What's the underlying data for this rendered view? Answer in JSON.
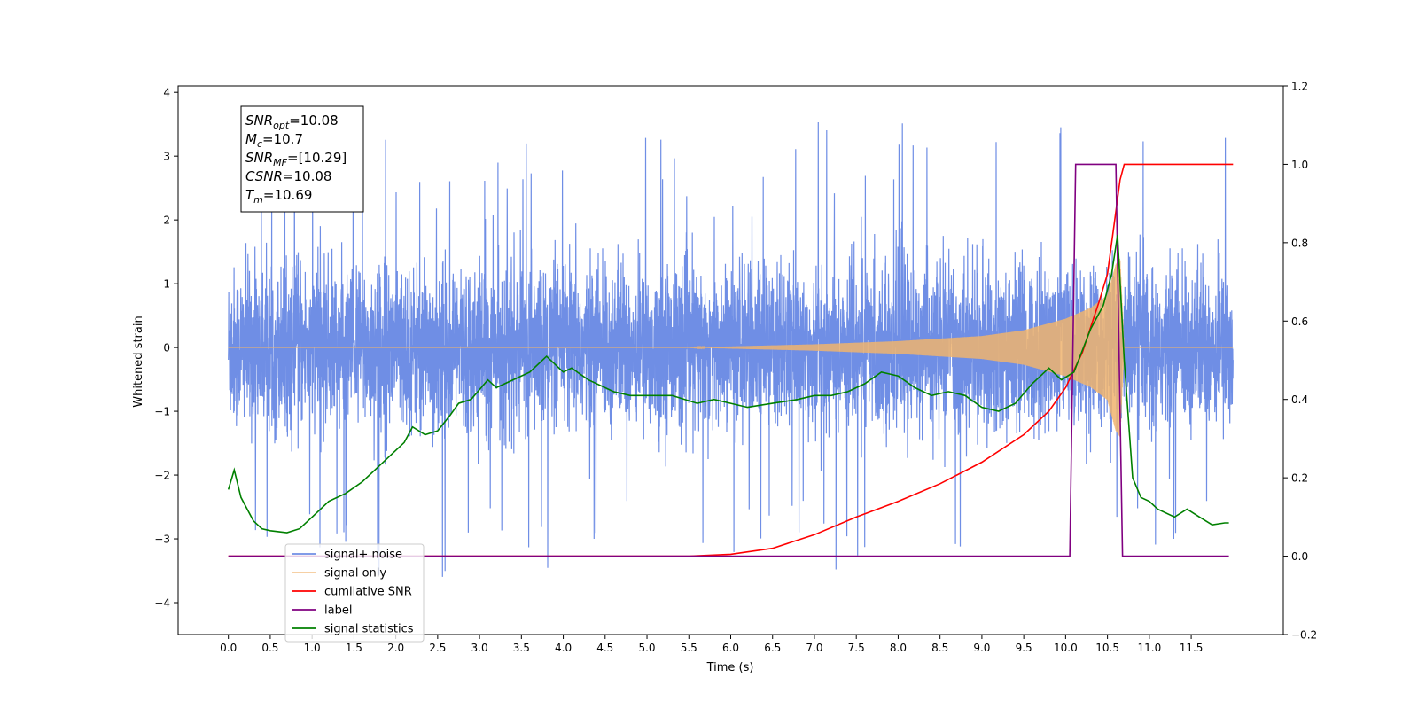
{
  "chart_data": {
    "type": "line",
    "title": "",
    "xlabel": "Time (s)",
    "ylabel": "Whitened strain",
    "ylabel_right": "",
    "xlim": [
      -0.6,
      12.6
    ],
    "ylim": [
      -4.5,
      4.1
    ],
    "ylim_right": [
      -0.2,
      1.2
    ],
    "x_ticks": [
      0.0,
      0.5,
      1.0,
      1.5,
      2.0,
      2.5,
      3.0,
      3.5,
      4.0,
      4.5,
      5.0,
      5.5,
      6.0,
      6.5,
      7.0,
      7.5,
      8.0,
      8.5,
      9.0,
      9.5,
      10.0,
      10.5,
      11.0,
      11.5
    ],
    "x_tick_labels": [
      "0.0",
      "0.5",
      "1.0",
      "1.5",
      "2.0",
      "2.5",
      "3.0",
      "3.5",
      "4.0",
      "4.5",
      "5.0",
      "5.5",
      "6.0",
      "6.5",
      "7.0",
      "7.5",
      "8.0",
      "8.5",
      "9.0",
      "9.5",
      "10.0",
      "10.5",
      "11.0",
      "11.5"
    ],
    "y_ticks": [
      -4,
      -3,
      -2,
      -1,
      0,
      1,
      2,
      3,
      4
    ],
    "y_tick_labels": [
      "−4",
      "−3",
      "−2",
      "−1",
      "0",
      "1",
      "2",
      "3",
      "4"
    ],
    "y_right_ticks": [
      -0.2,
      0.0,
      0.2,
      0.4,
      0.6,
      0.8,
      1.0,
      1.2
    ],
    "y_right_tick_labels": [
      "−0.2",
      "0.0",
      "0.2",
      "0.4",
      "0.6",
      "0.8",
      "1.0",
      "1.2"
    ],
    "grid": false,
    "legend_position": "lower-left",
    "annotation_box": {
      "lines": [
        {
          "sym": "SNR",
          "sub": "opt",
          "value": "=10.08"
        },
        {
          "sym": "M",
          "sub": "c",
          "value": "=10.7"
        },
        {
          "sym": "SNR",
          "sub": "MF",
          "value": "=[10.29]"
        },
        {
          "sym": "CSNR",
          "sub": "",
          "value": "=10.08"
        },
        {
          "sym": "T",
          "sub": "m",
          "value": "=10.69"
        }
      ]
    },
    "series": [
      {
        "name": "signal+ noise",
        "axis": "left",
        "color": "#6f8ee5",
        "kind": "noise",
        "description_values": {
          "x_start": 0.0,
          "x_end": 12.0,
          "typical_range": [
            -1.5,
            1.5
          ],
          "max": 3.68,
          "min": -4.1
        }
      },
      {
        "name": "signal only",
        "axis": "left",
        "color": "#f0b46e",
        "kind": "chirp",
        "x": [
          0.0,
          5.5,
          7.0,
          8.0,
          9.0,
          9.5,
          10.0,
          10.3,
          10.5,
          10.6,
          10.65,
          10.7,
          12.0
        ],
        "envelope": [
          0.0,
          0.0,
          0.05,
          0.1,
          0.18,
          0.27,
          0.45,
          0.62,
          0.82,
          1.3,
          1.4,
          0.0,
          0.0
        ]
      },
      {
        "name": "cumilative SNR",
        "axis": "right",
        "color": "#ff0000",
        "x": [
          0.0,
          5.5,
          6.0,
          6.5,
          7.0,
          7.5,
          8.0,
          8.5,
          9.0,
          9.5,
          9.8,
          10.0,
          10.2,
          10.4,
          10.5,
          10.6,
          10.65,
          10.7,
          12.0
        ],
        "values": [
          0.0,
          0.0,
          0.005,
          0.02,
          0.055,
          0.1,
          0.14,
          0.185,
          0.24,
          0.31,
          0.37,
          0.43,
          0.52,
          0.65,
          0.72,
          0.88,
          0.96,
          1.0,
          1.0
        ]
      },
      {
        "name": "label",
        "axis": "right",
        "color": "#800080",
        "x": [
          0.0,
          10.05,
          10.12,
          10.6,
          10.68,
          11.95
        ],
        "values": [
          0.0,
          0.0,
          1.0,
          1.0,
          0.0,
          0.0
        ]
      },
      {
        "name": "signal statistics",
        "axis": "right",
        "color": "#008000",
        "x": [
          0.0,
          0.07,
          0.15,
          0.3,
          0.4,
          0.5,
          0.7,
          0.85,
          1.0,
          1.2,
          1.4,
          1.6,
          1.8,
          2.0,
          2.1,
          2.2,
          2.35,
          2.5,
          2.65,
          2.75,
          2.9,
          3.1,
          3.2,
          3.4,
          3.6,
          3.8,
          3.9,
          4.0,
          4.1,
          4.3,
          4.6,
          4.8,
          5.0,
          5.3,
          5.6,
          5.8,
          6.0,
          6.2,
          6.5,
          6.8,
          7.0,
          7.2,
          7.4,
          7.6,
          7.8,
          8.0,
          8.2,
          8.4,
          8.6,
          8.8,
          9.0,
          9.2,
          9.4,
          9.6,
          9.8,
          9.95,
          10.1,
          10.3,
          10.45,
          10.55,
          10.62,
          10.7,
          10.8,
          10.9,
          11.0,
          11.1,
          11.3,
          11.45,
          11.6,
          11.75,
          11.9,
          11.95
        ],
        "values": [
          0.17,
          0.22,
          0.15,
          0.09,
          0.07,
          0.065,
          0.06,
          0.07,
          0.1,
          0.14,
          0.16,
          0.19,
          0.23,
          0.27,
          0.29,
          0.33,
          0.31,
          0.32,
          0.36,
          0.39,
          0.4,
          0.45,
          0.43,
          0.45,
          0.47,
          0.51,
          0.49,
          0.47,
          0.48,
          0.45,
          0.42,
          0.41,
          0.41,
          0.41,
          0.39,
          0.4,
          0.39,
          0.38,
          0.39,
          0.4,
          0.41,
          0.41,
          0.42,
          0.44,
          0.47,
          0.46,
          0.43,
          0.41,
          0.42,
          0.41,
          0.38,
          0.37,
          0.39,
          0.44,
          0.48,
          0.45,
          0.47,
          0.58,
          0.64,
          0.72,
          0.82,
          0.5,
          0.2,
          0.15,
          0.14,
          0.12,
          0.1,
          0.12,
          0.1,
          0.08,
          0.085,
          0.085
        ]
      }
    ]
  }
}
